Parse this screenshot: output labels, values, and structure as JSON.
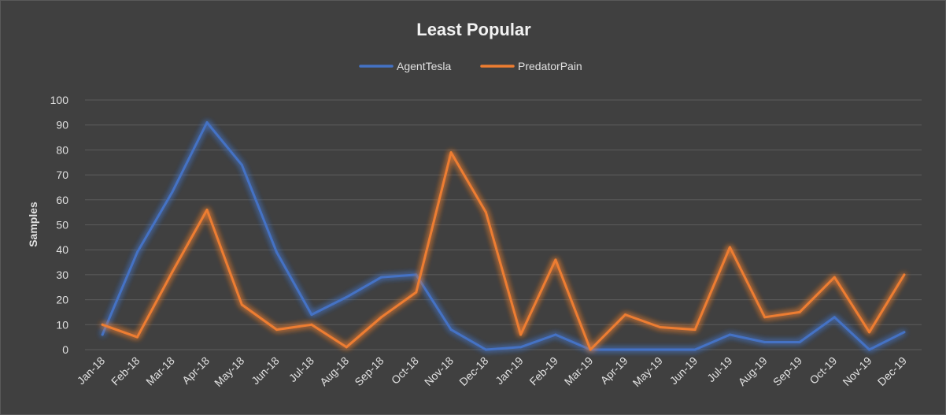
{
  "chart_data": {
    "type": "line",
    "title": "Least Popular",
    "xlabel": "",
    "ylabel": "Samples",
    "ylim": [
      0,
      100
    ],
    "yticks": [
      0,
      10,
      20,
      30,
      40,
      50,
      60,
      70,
      80,
      90,
      100
    ],
    "grid": true,
    "legend_position": "top-center",
    "categories": [
      "Jan-18",
      "Feb-18",
      "Mar-18",
      "Apr-18",
      "May-18",
      "Jun-18",
      "Jul-18",
      "Aug-18",
      "Sep-18",
      "Oct-18",
      "Nov-18",
      "Dec-18",
      "Jan-19",
      "Feb-19",
      "Mar-19",
      "Apr-19",
      "May-19",
      "Jun-19",
      "Jul-19",
      "Aug-19",
      "Sep-19",
      "Oct-19",
      "Nov-19",
      "Dec-19"
    ],
    "series": [
      {
        "name": "AgentTesla",
        "color": "#4472c4",
        "values": [
          6,
          39,
          63,
          91,
          74,
          39,
          14,
          21,
          29,
          30,
          8,
          0,
          1,
          6,
          0,
          0,
          0,
          0,
          6,
          3,
          3,
          13,
          0,
          7
        ]
      },
      {
        "name": "PredatorPain",
        "color": "#ed7d31",
        "values": [
          10,
          5,
          31,
          56,
          18,
          8,
          10,
          1,
          13,
          23,
          79,
          55,
          6,
          36,
          0,
          14,
          9,
          8,
          41,
          13,
          15,
          29,
          7,
          30
        ]
      }
    ]
  }
}
